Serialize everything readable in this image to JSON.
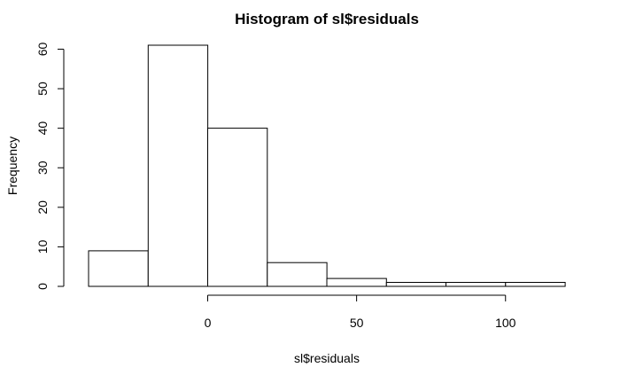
{
  "chart_data": {
    "type": "bar",
    "title": "Histogram of sl$residuals",
    "xlabel": "sl$residuals",
    "ylabel": "Frequency",
    "bins": [
      {
        "start": -40,
        "end": -20,
        "count": 9
      },
      {
        "start": -20,
        "end": 0,
        "count": 61
      },
      {
        "start": 0,
        "end": 20,
        "count": 40
      },
      {
        "start": 20,
        "end": 40,
        "count": 6
      },
      {
        "start": 40,
        "end": 60,
        "count": 2
      },
      {
        "start": 60,
        "end": 80,
        "count": 1
      },
      {
        "start": 80,
        "end": 100,
        "count": 1
      },
      {
        "start": 100,
        "end": 120,
        "count": 1
      }
    ],
    "xticks": [
      0,
      50,
      100
    ],
    "yticks": [
      0,
      10,
      20,
      30,
      40,
      50,
      60
    ],
    "xlim": [
      -40,
      120
    ],
    "ylim": [
      0,
      61
    ],
    "grid": false
  }
}
